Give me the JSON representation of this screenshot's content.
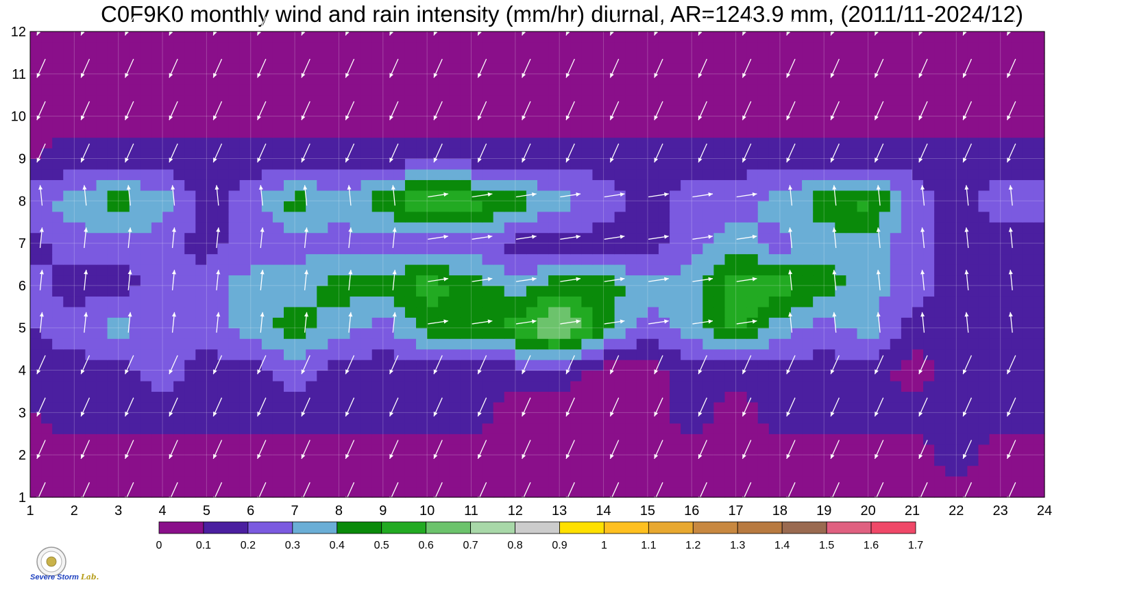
{
  "chart_data": {
    "type": "heatmap",
    "title": "C0F9K0 monthly wind and rain intensity (mm/hr) diurnal, AR=1243.9 mm, (2011/11-2024/12)",
    "x": [
      1,
      2,
      3,
      4,
      5,
      6,
      7,
      8,
      9,
      10,
      11,
      12,
      13,
      14,
      15,
      16,
      17,
      18,
      19,
      20,
      21,
      22,
      23,
      24
    ],
    "y": [
      1,
      2,
      3,
      4,
      5,
      6,
      7,
      8,
      9,
      10,
      11,
      12
    ],
    "xlim": [
      1,
      24
    ],
    "ylim": [
      1,
      12
    ],
    "x_ticks": [
      "1",
      "2",
      "3",
      "4",
      "5",
      "6",
      "7",
      "8",
      "9",
      "10",
      "11",
      "12",
      "13",
      "14",
      "15",
      "16",
      "17",
      "18",
      "19",
      "20",
      "21",
      "22",
      "23",
      "24"
    ],
    "y_ticks": [
      "1",
      "2",
      "3",
      "4",
      "5",
      "6",
      "7",
      "8",
      "9",
      "10",
      "11",
      "12"
    ],
    "grid": true,
    "z": [
      [
        0.05,
        0.05,
        0.05,
        0.05,
        0.05,
        0.05,
        0.05,
        0.05,
        0.05,
        0.05,
        0.05,
        0.05,
        0.05,
        0.05,
        0.05,
        0.05,
        0.05,
        0.05,
        0.05,
        0.05,
        0.05,
        0.05,
        0.05,
        0.05
      ],
      [
        0.05,
        0.05,
        0.05,
        0.05,
        0.05,
        0.05,
        0.05,
        0.05,
        0.05,
        0.05,
        0.05,
        0.05,
        0.05,
        0.05,
        0.05,
        0.05,
        0.05,
        0.05,
        0.05,
        0.05,
        0.05,
        0.15,
        0.05,
        0.05
      ],
      [
        0.1,
        0.15,
        0.15,
        0.15,
        0.15,
        0.15,
        0.15,
        0.15,
        0.15,
        0.15,
        0.15,
        0.05,
        0.05,
        0.05,
        0.05,
        0.15,
        0.05,
        0.15,
        0.15,
        0.15,
        0.15,
        0.15,
        0.15,
        0.15
      ],
      [
        0.15,
        0.15,
        0.15,
        0.25,
        0.15,
        0.15,
        0.25,
        0.15,
        0.15,
        0.15,
        0.15,
        0.15,
        0.15,
        0.05,
        0.05,
        0.15,
        0.15,
        0.15,
        0.15,
        0.15,
        0.05,
        0.15,
        0.15,
        0.15
      ],
      [
        0.2,
        0.25,
        0.35,
        0.25,
        0.25,
        0.35,
        0.45,
        0.35,
        0.25,
        0.45,
        0.45,
        0.55,
        0.75,
        0.45,
        0.25,
        0.35,
        0.55,
        0.35,
        0.25,
        0.35,
        0.15,
        0.15,
        0.15,
        0.15
      ],
      [
        0.25,
        0.15,
        0.15,
        0.25,
        0.25,
        0.35,
        0.35,
        0.45,
        0.45,
        0.55,
        0.45,
        0.35,
        0.45,
        0.45,
        0.35,
        0.35,
        0.55,
        0.55,
        0.45,
        0.35,
        0.25,
        0.15,
        0.15,
        0.15
      ],
      [
        0.15,
        0.25,
        0.25,
        0.25,
        0.15,
        0.25,
        0.25,
        0.25,
        0.25,
        0.25,
        0.25,
        0.15,
        0.15,
        0.15,
        0.15,
        0.25,
        0.35,
        0.25,
        0.35,
        0.35,
        0.25,
        0.15,
        0.15,
        0.15
      ],
      [
        0.25,
        0.35,
        0.45,
        0.35,
        0.15,
        0.25,
        0.45,
        0.35,
        0.45,
        0.65,
        0.55,
        0.45,
        0.35,
        0.25,
        0.15,
        0.25,
        0.25,
        0.35,
        0.45,
        0.55,
        0.25,
        0.15,
        0.25,
        0.25
      ],
      [
        0.1,
        0.15,
        0.15,
        0.15,
        0.15,
        0.15,
        0.15,
        0.15,
        0.15,
        0.15,
        0.15,
        0.15,
        0.15,
        0.15,
        0.15,
        0.15,
        0.15,
        0.15,
        0.15,
        0.15,
        0.15,
        0.15,
        0.15,
        0.15
      ],
      [
        0.05,
        0.05,
        0.05,
        0.05,
        0.05,
        0.05,
        0.05,
        0.05,
        0.05,
        0.05,
        0.05,
        0.05,
        0.05,
        0.05,
        0.05,
        0.05,
        0.05,
        0.05,
        0.05,
        0.05,
        0.05,
        0.05,
        0.05,
        0.05
      ],
      [
        0.05,
        0.05,
        0.05,
        0.05,
        0.05,
        0.05,
        0.05,
        0.05,
        0.05,
        0.05,
        0.05,
        0.05,
        0.05,
        0.05,
        0.05,
        0.05,
        0.05,
        0.05,
        0.05,
        0.05,
        0.05,
        0.05,
        0.05,
        0.05
      ],
      [
        0.05,
        0.05,
        0.05,
        0.05,
        0.05,
        0.05,
        0.05,
        0.05,
        0.05,
        0.05,
        0.05,
        0.05,
        0.05,
        0.05,
        0.05,
        0.05,
        0.05,
        0.05,
        0.05,
        0.05,
        0.05,
        0.05,
        0.05,
        0.05
      ]
    ],
    "wind_direction": "arrows point toward the lower-left (from NE) in rows 1-4 and 9-12, toward the north in rows 5-7 early hours, toward the east around hours 10-17 in rows 6-8",
    "colorbar": {
      "levels": [
        0,
        0.1,
        0.2,
        0.3,
        0.4,
        0.5,
        0.6,
        0.7,
        0.8,
        0.9,
        1,
        1.1,
        1.2,
        1.3,
        1.4,
        1.5,
        1.6,
        1.7
      ],
      "labels": [
        "0",
        "0.1",
        "0.2",
        "0.3",
        "0.4",
        "0.5",
        "0.6",
        "0.7",
        "0.8",
        "0.9",
        "1",
        "1.1",
        "1.2",
        "1.3",
        "1.4",
        "1.5",
        "1.6",
        "1.7"
      ],
      "colors": [
        "#8a0f8a",
        "#4b1fa0",
        "#7b5ae0",
        "#6aaed6",
        "#0a8a0a",
        "#22aa22",
        "#6cc36c",
        "#a8d8a8",
        "#cccccc",
        "#ffe000",
        "#ffc020",
        "#e8a830",
        "#c88840",
        "#b87a40",
        "#9a6a50",
        "#e06080",
        "#f04868"
      ]
    },
    "contour_color": "#f0a000",
    "arrow_color": "#ffffff"
  },
  "logo": {
    "text_prefix": "Severe Storm ",
    "text_suffix": "Lab."
  }
}
